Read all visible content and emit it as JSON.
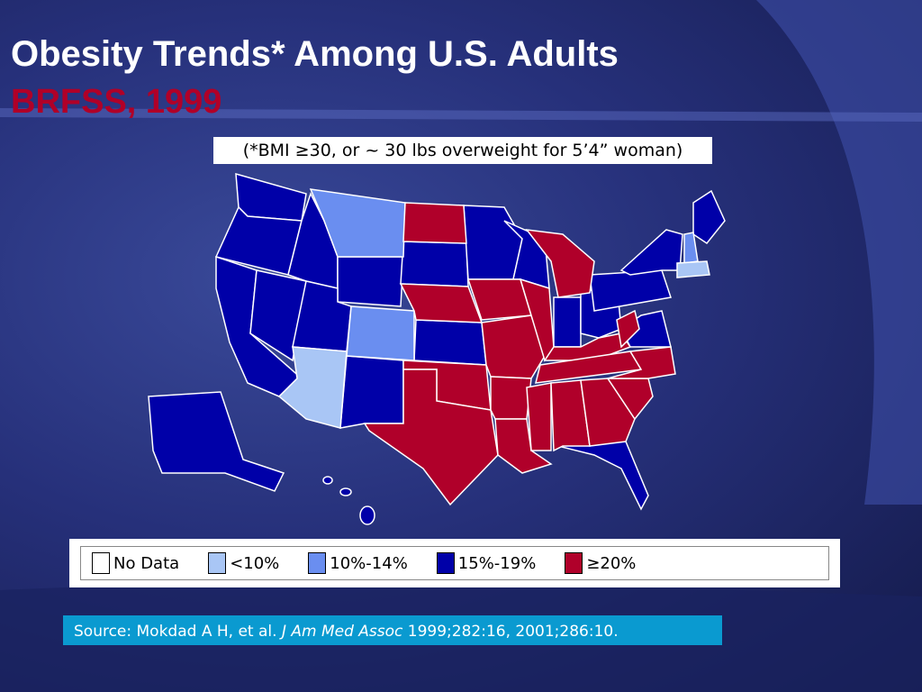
{
  "title": "Obesity Trends* Among U.S. Adults",
  "subtitle": "BRFSS, 1999",
  "note": "(*BMI ≥30, or ~ 30 lbs overweight for 5’4” woman)",
  "legend": [
    {
      "label": "No Data",
      "color": "#ffffff"
    },
    {
      "label": "<10%",
      "color": "#a9c6f5"
    },
    {
      "label": "10%-14%",
      "color": "#6a8ef0"
    },
    {
      "label": "15%-19%",
      "color": "#0000a8"
    },
    {
      "label": "≥20%",
      "color": "#b0002a"
    }
  ],
  "source": {
    "prefix": "Source: Mokdad A H, et al.",
    "journal": "J Am Med Assoc",
    "suffix": "1999;282:16, 2001;286:10."
  }
}
